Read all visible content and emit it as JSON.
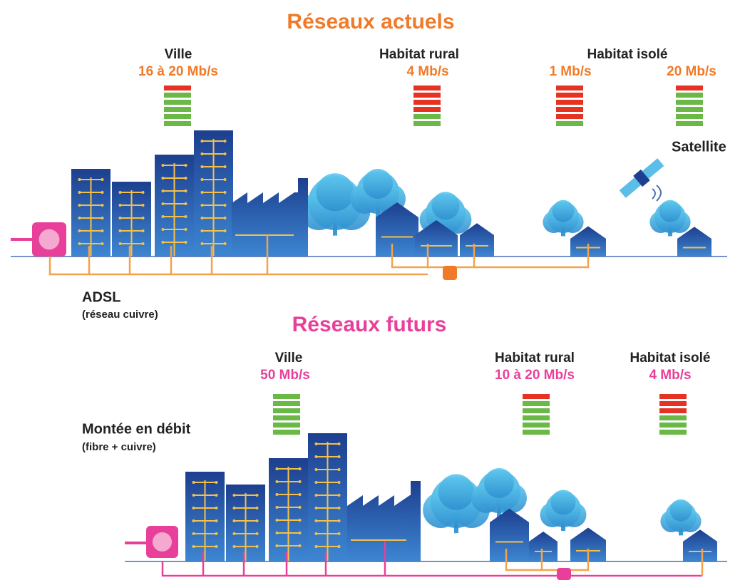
{
  "top": {
    "title": "Réseaux actuels",
    "ville": {
      "label": "Ville",
      "speed": "16 à 20 Mb/s"
    },
    "rural": {
      "label": "Habitat rural",
      "speed": "4 Mb/s"
    },
    "isole": {
      "label": "Habitat isolé",
      "speed_left": "1 Mb/s",
      "speed_right": "20 Mb/s"
    },
    "satellite": "Satellite",
    "network": {
      "name": "ADSL",
      "detail": "(réseau cuivre)"
    }
  },
  "bottom": {
    "title": "Réseaux futurs",
    "ville": {
      "label": "Ville",
      "speed": "50 Mb/s"
    },
    "rural": {
      "label": "Habitat rural",
      "speed": "10 à 20 Mb/s"
    },
    "isole": {
      "label": "Habitat isolé",
      "speed": "4 Mb/s"
    },
    "network": {
      "name": "Montée en débit",
      "detail": "(fibre + cuivre)"
    }
  }
}
